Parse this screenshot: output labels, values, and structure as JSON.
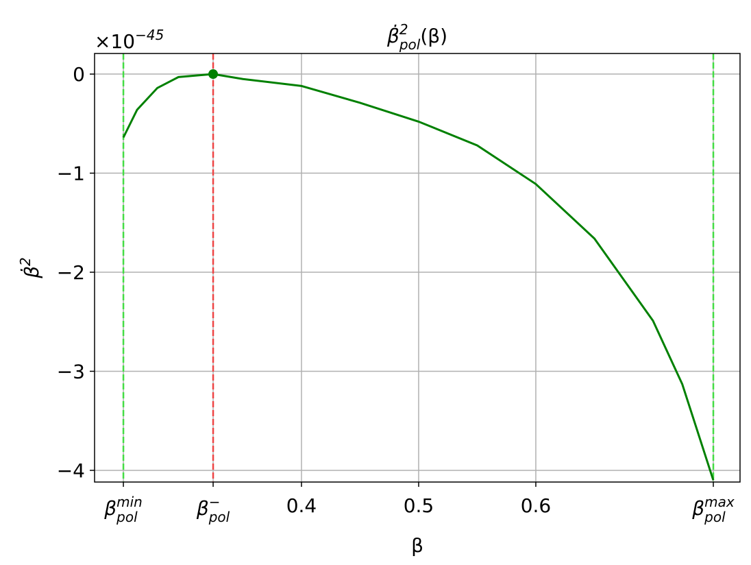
{
  "chart_data": {
    "type": "line",
    "title": {
      "base": "β̇",
      "sup": "2",
      "sub": "pol",
      "tail": "(β)"
    },
    "x_label": "β",
    "y_label": {
      "base": "β̇",
      "sup": "2"
    },
    "y_offset": {
      "base": "×10",
      "sup": "−45"
    },
    "xlim": [
      0.2234,
      0.7743
    ],
    "ylim": [
      -4.118,
      0.208
    ],
    "xticks": [
      {
        "value": 0.248,
        "label": "β",
        "sub": "pol",
        "sup": "min"
      },
      {
        "value": 0.3246,
        "label": "β",
        "sub": "pol",
        "sup": "−"
      },
      0.4,
      0.5,
      0.6,
      {
        "value": 0.7515,
        "label": "β",
        "sub": "pol",
        "sup": "max"
      }
    ],
    "yticks": [
      {
        "value": 0,
        "label": "0"
      },
      {
        "value": -1,
        "label": "−1"
      },
      {
        "value": -2,
        "label": "−2"
      },
      {
        "value": -3,
        "label": "−3"
      },
      {
        "value": -4,
        "label": "−4"
      }
    ],
    "grid": true,
    "series": [
      {
        "color": "#008000",
        "x": [
          0.248,
          0.2597,
          0.277,
          0.295,
          0.3246,
          0.35,
          0.4,
          0.45,
          0.5,
          0.55,
          0.6,
          0.65,
          0.7,
          0.725,
          0.7515
        ],
        "values": [
          -0.64,
          -0.36,
          -0.14,
          -0.03,
          0,
          -0.05,
          -0.12,
          -0.29,
          -0.48,
          -0.72,
          -1.11,
          -1.66,
          -2.49,
          -3.13,
          -4.1
        ]
      }
    ],
    "point": {
      "x": 0.3246,
      "y": 0,
      "color": "#008000"
    },
    "vlines": [
      {
        "x": 0.248,
        "color": "#44dd44"
      },
      {
        "x": 0.3246,
        "color": "#ee4444"
      },
      {
        "x": 0.7515,
        "color": "#44dd44"
      }
    ]
  }
}
